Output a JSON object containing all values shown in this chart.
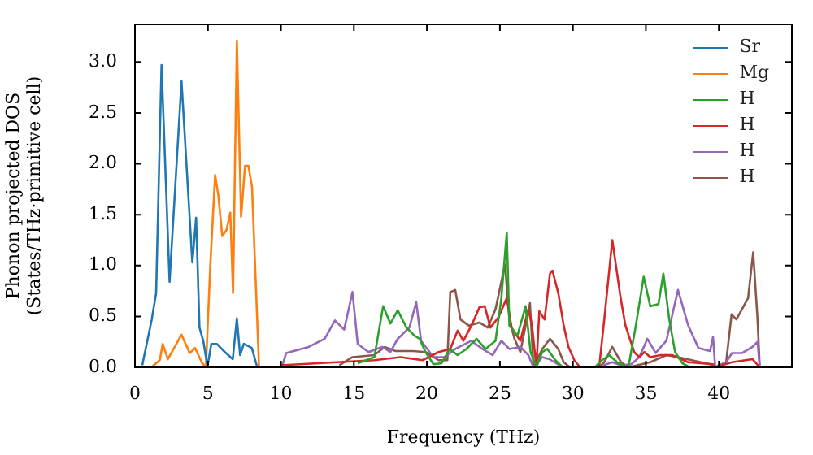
{
  "chart_data": {
    "type": "line",
    "xlabel": "Frequency (THz)",
    "ylabel": "Phonon projected DOS\n(States/THz·primitive cell)",
    "xlim": [
      0,
      45
    ],
    "ylim": [
      0,
      3.37
    ],
    "xticks": [
      0,
      5,
      10,
      15,
      20,
      25,
      30,
      35,
      40
    ],
    "yticks": [
      {
        "value": 0,
        "label": "0.0"
      },
      0.5,
      {
        "value": 1,
        "label": "1.0"
      },
      1.5,
      {
        "value": 2,
        "label": "2.0"
      },
      2.5,
      {
        "value": 3,
        "label": "3.0"
      }
    ],
    "legend": "top right",
    "grid": false,
    "marker": "none",
    "line_style": "solid",
    "series": [
      {
        "name": "Sr",
        "color": "#1f77b4",
        "x": [
          0.5,
          1.15,
          1.45,
          1.82,
          2.37,
          3.19,
          3.93,
          4.19,
          4.42,
          4.68,
          4.97,
          5.23,
          5.6,
          6.16,
          6.7,
          6.98,
          7.2,
          7.46,
          8.0,
          8.38
        ],
        "values": [
          0.02,
          0.47,
          0.73,
          2.97,
          0.84,
          2.81,
          1.03,
          1.47,
          0.39,
          0.26,
          0.01,
          0.23,
          0.23,
          0.15,
          0.08,
          0.48,
          0.12,
          0.23,
          0.19,
          0
        ]
      },
      {
        "name": "Mg",
        "color": "#ff7f0e",
        "x": [
          1.2,
          1.7,
          1.9,
          2.26,
          3.19,
          3.75,
          4.12,
          4.6,
          4.86,
          5.16,
          5.49,
          5.71,
          5.98,
          6.27,
          6.53,
          6.72,
          6.98,
          7.27,
          7.54,
          7.77,
          8.02,
          8.5
        ],
        "values": [
          0.01,
          0.07,
          0.23,
          0.08,
          0.32,
          0.14,
          0.19,
          0.04,
          0,
          1.0,
          1.89,
          1.69,
          1.29,
          1.35,
          1.52,
          0.73,
          3.21,
          1.48,
          1.98,
          1.98,
          1.77,
          0
        ]
      },
      {
        "name": "H",
        "color": "#2ca02c",
        "x": [
          15.26,
          16.4,
          17.0,
          17.5,
          18.0,
          18.6,
          19.15,
          19.5,
          19.9,
          20.45,
          21.0,
          21.57,
          22.1,
          22.7,
          23.4,
          24.0,
          24.7,
          25.1,
          25.47,
          25.65,
          26.2,
          26.76,
          27.1,
          27.5,
          27.9,
          28.25,
          28.8,
          29.3,
          31.5,
          32.0,
          32.5,
          33.1,
          33.8,
          34.3,
          34.85,
          35.3,
          35.86,
          36.2,
          36.6,
          37.0,
          37.5,
          38.0
        ],
        "values": [
          0.04,
          0.1,
          0.6,
          0.43,
          0.56,
          0.39,
          0.31,
          0.28,
          0.15,
          0.03,
          0.04,
          0.18,
          0.12,
          0.18,
          0.28,
          0.18,
          0.26,
          0.68,
          1.32,
          0.41,
          0.31,
          0.6,
          0.15,
          0,
          0.15,
          0.18,
          0.07,
          0,
          0,
          0.07,
          0.12,
          0.04,
          0,
          0.4,
          0.89,
          0.6,
          0.62,
          0.92,
          0.47,
          0.15,
          0.04,
          0
        ]
      },
      {
        "name": "H",
        "color": "#d62728",
        "x": [
          10,
          16.4,
          18.2,
          19.7,
          20.8,
          21.6,
          22.1,
          22.5,
          23.05,
          23.6,
          23.96,
          24.35,
          24.9,
          25.47,
          25.8,
          26.4,
          26.95,
          27.2,
          27.5,
          27.7,
          28.06,
          28.43,
          28.6,
          29.0,
          29.37,
          29.7,
          30.1,
          30.5,
          31.8,
          32.15,
          32.7,
          33.26,
          33.6,
          34.2,
          34.55,
          34.9,
          35.3,
          36.0,
          36.8,
          37.9,
          39.6,
          39.75,
          40.9,
          42.3,
          42.8
        ],
        "values": [
          0.02,
          0.07,
          0.1,
          0.07,
          0.15,
          0.18,
          0.36,
          0.26,
          0.41,
          0.59,
          0.6,
          0.39,
          0.49,
          0.68,
          0.39,
          0.26,
          0.57,
          0.41,
          0,
          0.55,
          0.47,
          0.92,
          0.95,
          0.73,
          0.41,
          0.2,
          0.07,
          0,
          0,
          0.47,
          1.25,
          0.69,
          0.41,
          0.15,
          0.1,
          0.15,
          0.1,
          0.12,
          0.12,
          0.05,
          0.03,
          0,
          0.05,
          0.08,
          0
        ]
      },
      {
        "name": "H",
        "color": "#9467bd",
        "x": [
          10.06,
          10.36,
          11.9,
          13.0,
          13.7,
          14.33,
          14.9,
          15.26,
          16.0,
          16.93,
          17.5,
          18.0,
          18.8,
          19.27,
          19.6,
          20.45,
          21.2,
          21.94,
          23.05,
          23.8,
          24.5,
          25.1,
          25.65,
          26.4,
          26.95,
          27.3,
          27.9,
          28.4,
          29.3,
          31.8,
          32.3,
          32.7,
          33.3,
          34.0,
          34.55,
          35.1,
          35.67,
          36.4,
          37.2,
          37.9,
          38.6,
          39.4,
          39.6,
          39.75,
          40.5,
          40.9,
          41.6,
          42.3,
          42.65,
          42.8
        ],
        "values": [
          0,
          0.14,
          0.2,
          0.28,
          0.46,
          0.37,
          0.74,
          0.23,
          0.15,
          0.2,
          0.15,
          0.28,
          0.39,
          0.64,
          0.26,
          0.1,
          0.1,
          0.18,
          0.26,
          0.18,
          0.12,
          0.26,
          0.18,
          0.2,
          0.12,
          0,
          0.1,
          0.08,
          0,
          0,
          0.03,
          0.05,
          0.02,
          0.03,
          0.1,
          0.28,
          0.14,
          0.26,
          0.76,
          0.41,
          0.19,
          0.16,
          0.3,
          0,
          0.05,
          0.14,
          0.14,
          0.2,
          0.25,
          0
        ]
      },
      {
        "name": "H",
        "color": "#8c564b",
        "x": [
          14.0,
          14.9,
          16.4,
          17.1,
          17.85,
          19.0,
          19.9,
          20.8,
          21.4,
          21.6,
          21.94,
          22.3,
          22.86,
          23.6,
          24.16,
          24.7,
          25.35,
          25.65,
          26.0,
          26.4,
          26.76,
          27.06,
          27.3,
          27.9,
          28.43,
          29.0,
          29.37,
          29.8,
          31.8,
          32.15,
          32.7,
          33.3,
          33.8,
          35.3,
          36.4,
          37.2,
          39.4,
          39.75,
          40.5,
          40.87,
          41.2,
          42.0,
          42.35,
          42.65,
          42.8
        ],
        "values": [
          0.02,
          0.1,
          0.12,
          0.2,
          0.16,
          0.16,
          0.15,
          0.07,
          0.07,
          0.74,
          0.76,
          0.47,
          0.41,
          0.44,
          0.39,
          0.57,
          1.01,
          0.47,
          0.28,
          0.15,
          0.41,
          0.63,
          0,
          0.18,
          0.28,
          0.18,
          0.05,
          0,
          0,
          0.05,
          0.2,
          0.05,
          0,
          0.05,
          0.12,
          0.1,
          0.03,
          0,
          0.05,
          0.52,
          0.47,
          0.68,
          1.13,
          0.47,
          0
        ]
      }
    ]
  }
}
